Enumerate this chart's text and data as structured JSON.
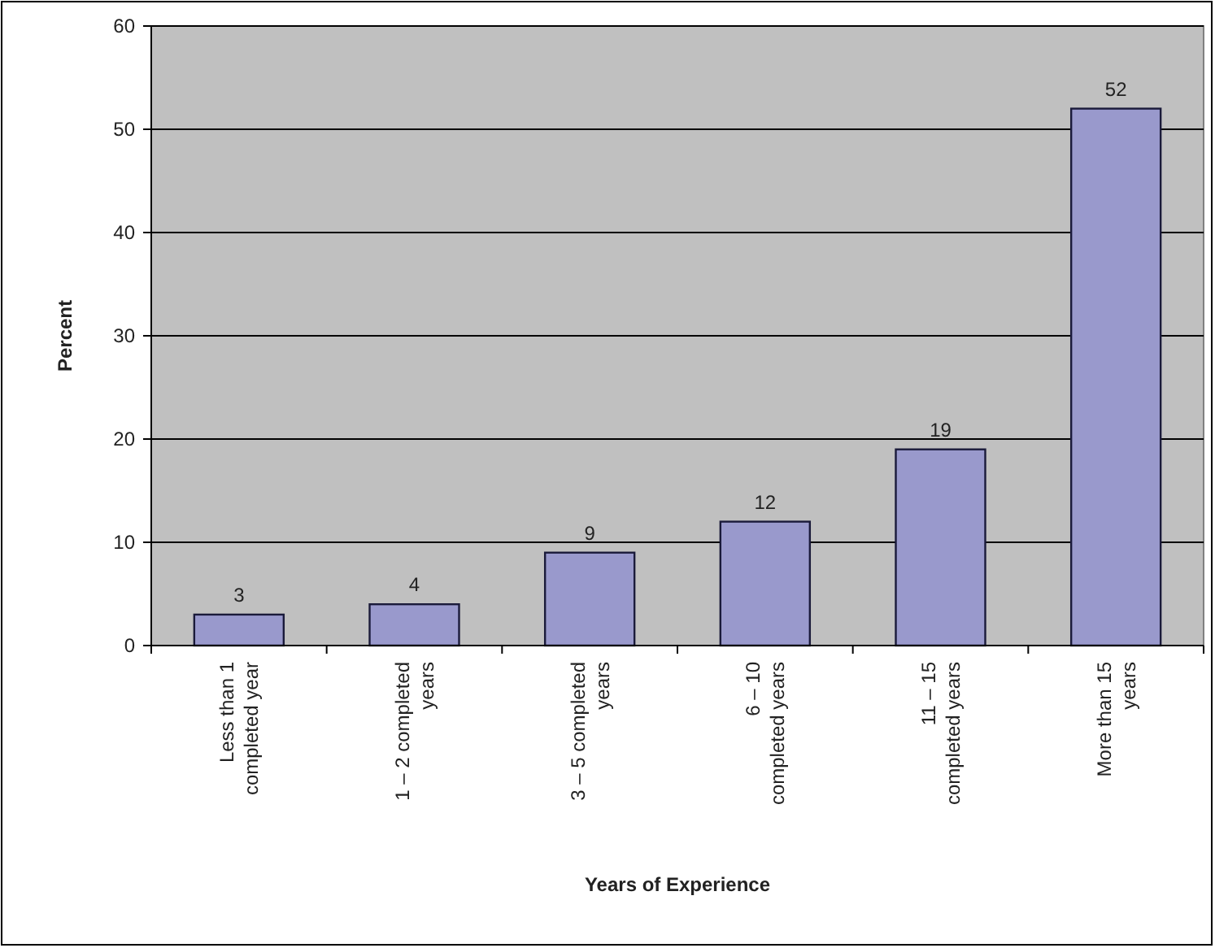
{
  "chart_data": {
    "type": "bar",
    "xlabel": "Years of Experience",
    "ylabel": "Percent",
    "categories": [
      "Less than 1 completed year",
      "1 – 2 completed years",
      "3 – 5 completed years",
      "6 – 10 completed years",
      "11 – 15 completed years",
      "More than 15 years"
    ],
    "values": [
      3,
      4,
      9,
      12,
      19,
      52
    ],
    "color": "#9999cc",
    "ylim": [
      0,
      60
    ],
    "yticks": [
      0,
      10,
      20,
      30,
      40,
      50,
      60
    ],
    "grid": "y",
    "data_labels": true
  }
}
